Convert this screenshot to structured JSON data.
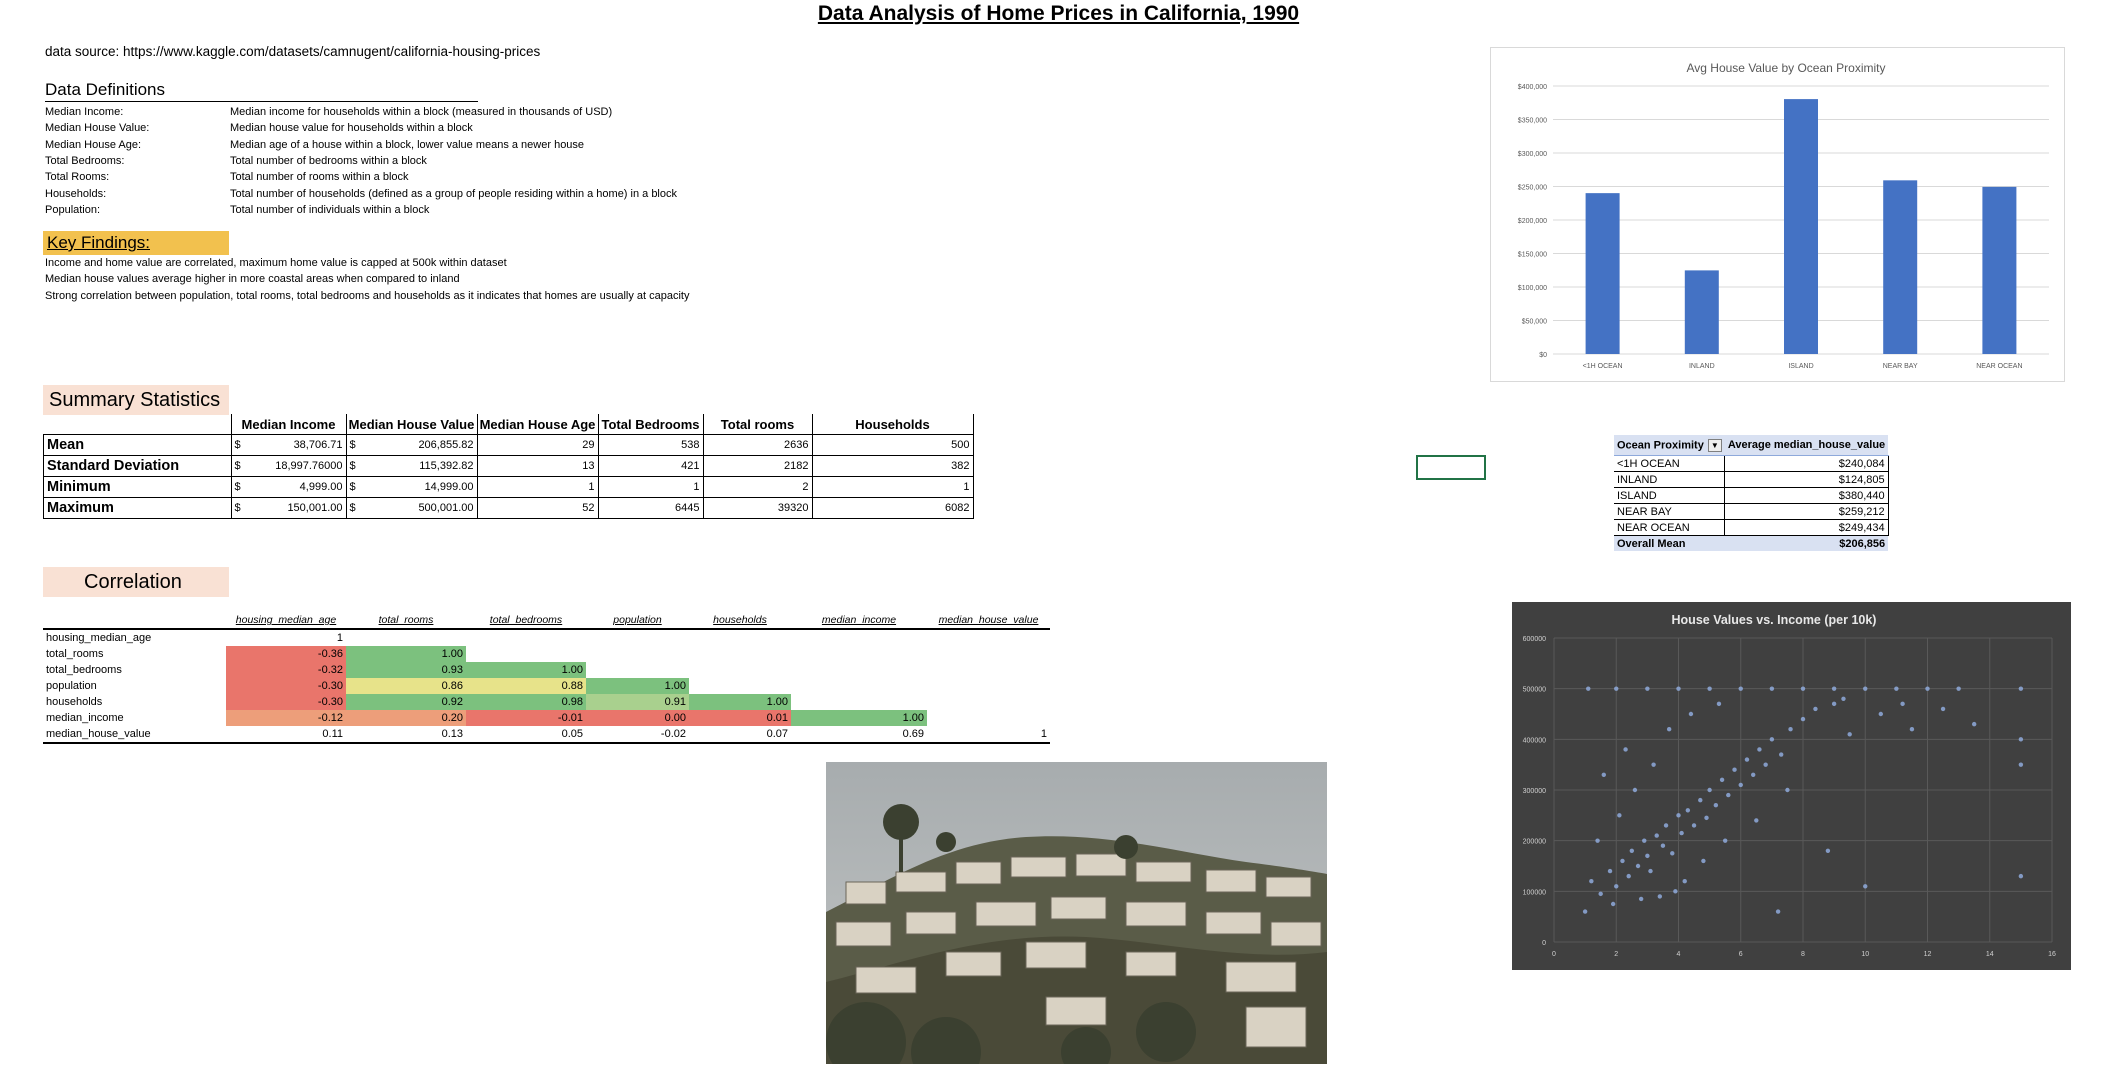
{
  "title": "Data Analysis of Home Prices in California, 1990",
  "data_source": "data source: https://www.kaggle.com/datasets/camnugent/california-housing-prices",
  "definitions": {
    "heading": "Data Definitions",
    "items": [
      {
        "term": "Median Income:",
        "desc": "Median income for households within a block (measured in thousands of USD)"
      },
      {
        "term": "Median House Value:",
        "desc": "Median house value for households within a block"
      },
      {
        "term": "Median House Age:",
        "desc": "Median age of a house within a block, lower value means a newer house"
      },
      {
        "term": "Total Bedrooms:",
        "desc": "Total number of bedrooms within a block"
      },
      {
        "term": "Total Rooms:",
        "desc": "Total number of rooms within a block"
      },
      {
        "term": "Households:",
        "desc": "Total number of households (defined as a group of people residing within a home) in a block"
      },
      {
        "term": "Population:",
        "desc": "Total number of individuals within a block"
      }
    ]
  },
  "key_findings": {
    "heading": "Key Findings:",
    "color": "#f2c14e",
    "items": [
      "Income and home value are correlated, maximum home value is capped at 500k within dataset",
      "Median house values average higher in more coastal areas when compared to inland",
      "Strong correlation between population, total rooms,  total bedrooms and households as it indicates that homes are usually at capacity"
    ]
  },
  "summary": {
    "heading": "Summary Statistics",
    "columns": [
      "Median Income",
      "Median House Value",
      "Median House Age",
      "Total Bedrooms",
      "Total rooms",
      "Households"
    ],
    "currency_symbol": "$",
    "rows": [
      {
        "label": "Mean",
        "income": "38,706.71",
        "house_value": "206,855.82",
        "age": "29",
        "bedrooms": "538",
        "rooms": "2636",
        "households": "500"
      },
      {
        "label": "Standard Deviation",
        "income": "18,997.76000",
        "house_value": "115,392.82",
        "age": "13",
        "bedrooms": "421",
        "rooms": "2182",
        "households": "382"
      },
      {
        "label": "Minimum",
        "income": "4,999.00",
        "house_value": "14,999.00",
        "age": "1",
        "bedrooms": "1",
        "rooms": "2",
        "households": "1"
      },
      {
        "label": "Maximum",
        "income": "150,001.00",
        "house_value": "500,001.00",
        "age": "52",
        "bedrooms": "6445",
        "rooms": "39320",
        "households": "6082"
      }
    ]
  },
  "correlation": {
    "heading": "Correlation",
    "columns": [
      "housing_median_age",
      "total_rooms",
      "total_bedrooms",
      "population",
      "households",
      "median_income",
      "median_house_value"
    ],
    "rows": [
      {
        "label": "housing_median_age",
        "values": [
          "1",
          "",
          "",
          "",
          "",
          "",
          ""
        ]
      },
      {
        "label": "total_rooms",
        "values": [
          "-0.36",
          "1.00",
          "",
          "",
          "",
          "",
          ""
        ]
      },
      {
        "label": "total_bedrooms",
        "values": [
          "-0.32",
          "0.93",
          "1.00",
          "",
          "",
          "",
          ""
        ]
      },
      {
        "label": "population",
        "values": [
          "-0.30",
          "0.86",
          "0.88",
          "1.00",
          "",
          "",
          ""
        ]
      },
      {
        "label": "households",
        "values": [
          "-0.30",
          "0.92",
          "0.98",
          "0.91",
          "1.00",
          "",
          ""
        ]
      },
      {
        "label": "median_income",
        "values": [
          "-0.12",
          "0.20",
          "-0.01",
          "0.00",
          "0.01",
          "1.00",
          ""
        ]
      },
      {
        "label": "median_house_value",
        "values": [
          "0.11",
          "0.13",
          "0.05",
          "-0.02",
          "0.07",
          "0.69",
          "1"
        ]
      }
    ],
    "colors": {
      "high": "#7cc17e",
      "mid": "#e7e38a",
      "low": "#e9756b",
      "orange": "#ed9e7a"
    }
  },
  "pivot": {
    "headers": [
      "Ocean Proximity",
      "Average median_house_value"
    ],
    "rows": [
      {
        "name": "<1H OCEAN",
        "value": "$240,084"
      },
      {
        "name": "INLAND",
        "value": "$124,805"
      },
      {
        "name": "ISLAND",
        "value": "$380,440"
      },
      {
        "name": "NEAR BAY",
        "value": "$259,212"
      },
      {
        "name": "NEAR OCEAN",
        "value": "$249,434"
      }
    ],
    "total": {
      "name": "Overall Mean",
      "value": "$206,856"
    }
  },
  "chart_data": [
    {
      "type": "bar",
      "title": "Avg House Value by Ocean Proximity",
      "categories": [
        "<1H OCEAN",
        "INLAND",
        "ISLAND",
        "NEAR BAY",
        "NEAR OCEAN"
      ],
      "values": [
        240084,
        124805,
        380440,
        259212,
        249434
      ],
      "ylim": [
        0,
        400000
      ],
      "yticks": [
        "$0",
        "$50,000",
        "$100,000",
        "$150,000",
        "$200,000",
        "$250,000",
        "$300,000",
        "$350,000",
        "$400,000"
      ],
      "grid": true,
      "color": "#4472c4"
    },
    {
      "type": "scatter",
      "title": "House Values vs. Income (per 10k)",
      "xlim": [
        0,
        16
      ],
      "ylim": [
        0,
        600000
      ],
      "xticks": [
        "0",
        "2",
        "4",
        "6",
        "8",
        "10",
        "12",
        "14",
        "16"
      ],
      "yticks": [
        "0",
        "100000",
        "200000",
        "300000",
        "400000",
        "500000",
        "600000"
      ],
      "grid": true,
      "background": "#404040",
      "color": "#8faadc",
      "points": [
        [
          1.2,
          120000
        ],
        [
          1.5,
          95000
        ],
        [
          1.8,
          140000
        ],
        [
          2.0,
          110000
        ],
        [
          2.2,
          160000
        ],
        [
          2.4,
          130000
        ],
        [
          2.5,
          180000
        ],
        [
          2.7,
          150000
        ],
        [
          2.9,
          200000
        ],
        [
          3.0,
          170000
        ],
        [
          3.1,
          140000
        ],
        [
          3.3,
          210000
        ],
        [
          3.5,
          190000
        ],
        [
          3.6,
          230000
        ],
        [
          3.8,
          175000
        ],
        [
          4.0,
          250000
        ],
        [
          4.1,
          215000
        ],
        [
          4.3,
          260000
        ],
        [
          4.5,
          230000
        ],
        [
          4.7,
          280000
        ],
        [
          4.9,
          245000
        ],
        [
          5.0,
          300000
        ],
        [
          5.2,
          270000
        ],
        [
          5.4,
          320000
        ],
        [
          5.6,
          290000
        ],
        [
          5.8,
          340000
        ],
        [
          6.0,
          310000
        ],
        [
          6.2,
          360000
        ],
        [
          6.4,
          330000
        ],
        [
          6.6,
          380000
        ],
        [
          6.8,
          350000
        ],
        [
          7.0,
          400000
        ],
        [
          7.3,
          370000
        ],
        [
          7.6,
          420000
        ],
        [
          8.0,
          440000
        ],
        [
          8.4,
          460000
        ],
        [
          9.0,
          470000
        ],
        [
          1.0,
          60000
        ],
        [
          1.4,
          200000
        ],
        [
          2.1,
          250000
        ],
        [
          2.6,
          300000
        ],
        [
          3.2,
          350000
        ],
        [
          3.4,
          90000
        ],
        [
          4.2,
          120000
        ],
        [
          4.8,
          160000
        ],
        [
          5.5,
          200000
        ],
        [
          6.5,
          240000
        ],
        [
          7.5,
          300000
        ],
        [
          1.6,
          330000
        ],
        [
          2.3,
          380000
        ],
        [
          3.7,
          420000
        ],
        [
          4.4,
          450000
        ],
        [
          5.3,
          470000
        ],
        [
          1.9,
          75000
        ],
        [
          2.8,
          85000
        ],
        [
          3.9,
          100000
        ],
        [
          1.1,
          500000
        ],
        [
          2.0,
          500000
        ],
        [
          3.0,
          500000
        ],
        [
          4.0,
          500000
        ],
        [
          5.0,
          500000
        ],
        [
          6.0,
          500000
        ],
        [
          7.0,
          500000
        ],
        [
          8.0,
          500000
        ],
        [
          9.0,
          500000
        ],
        [
          10.0,
          500000
        ],
        [
          11.0,
          500000
        ],
        [
          12.0,
          500000
        ],
        [
          13.0,
          500000
        ],
        [
          15.0,
          500000
        ],
        [
          9.5,
          410000
        ],
        [
          10.5,
          450000
        ],
        [
          11.5,
          420000
        ],
        [
          12.5,
          460000
        ],
        [
          15.0,
          400000
        ],
        [
          15.0,
          350000
        ],
        [
          15.0,
          130000
        ],
        [
          8.8,
          180000
        ],
        [
          10.0,
          110000
        ],
        [
          7.2,
          60000
        ],
        [
          9.3,
          480000
        ],
        [
          11.2,
          470000
        ],
        [
          13.5,
          430000
        ]
      ]
    }
  ]
}
